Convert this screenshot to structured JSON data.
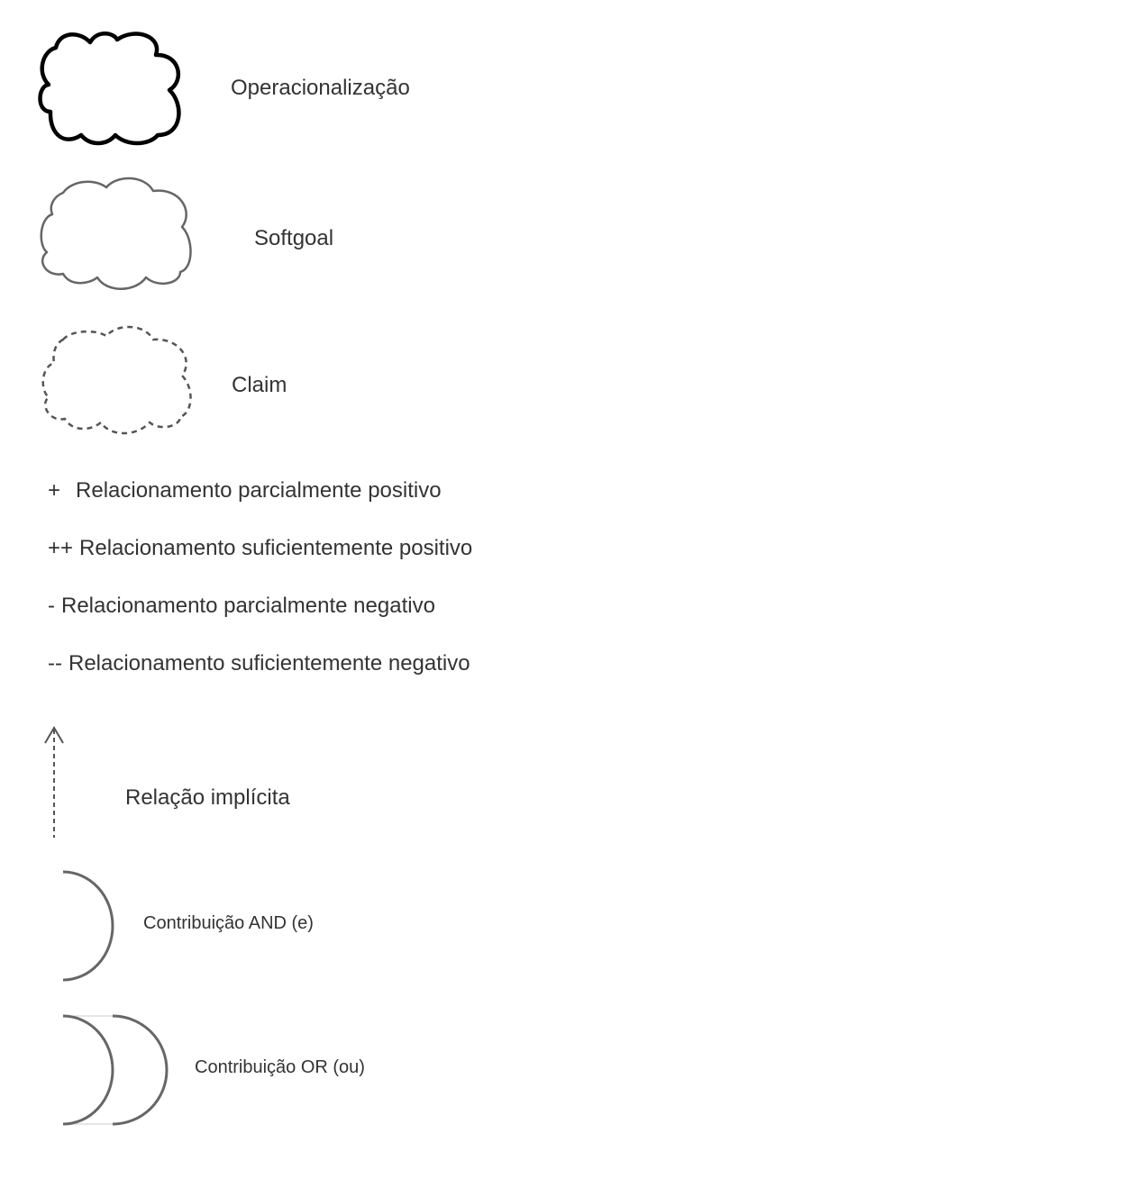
{
  "legend": {
    "operationalization": {
      "label": "Operacionalização",
      "icon": "cloud-bold-icon"
    },
    "softgoal": {
      "label": "Softgoal",
      "icon": "cloud-icon"
    },
    "claim": {
      "label": "Claim",
      "icon": "cloud-dashed-icon"
    },
    "relationships": [
      {
        "symbol": "+",
        "label": "Relacionamento parcialmente positivo"
      },
      {
        "symbol": "++",
        "label": "Relacionamento suficientemente positivo"
      },
      {
        "symbol": "-",
        "label": "Relacionamento parcialmente negativo"
      },
      {
        "symbol": "--",
        "label": "Relacionamento suficientemente negativo"
      }
    ],
    "implicit_relation": {
      "label": "Relação implícita",
      "icon": "dashed-arrow-up-icon"
    },
    "and_contribution": {
      "label": "Contribuição AND (e)",
      "icon": "single-arc-icon"
    },
    "or_contribution": {
      "label": "Contribuição OR (ou)",
      "icon": "double-arc-icon"
    }
  },
  "colors": {
    "bold_stroke": "#000000",
    "stroke": "#666666",
    "text": "#333333"
  }
}
